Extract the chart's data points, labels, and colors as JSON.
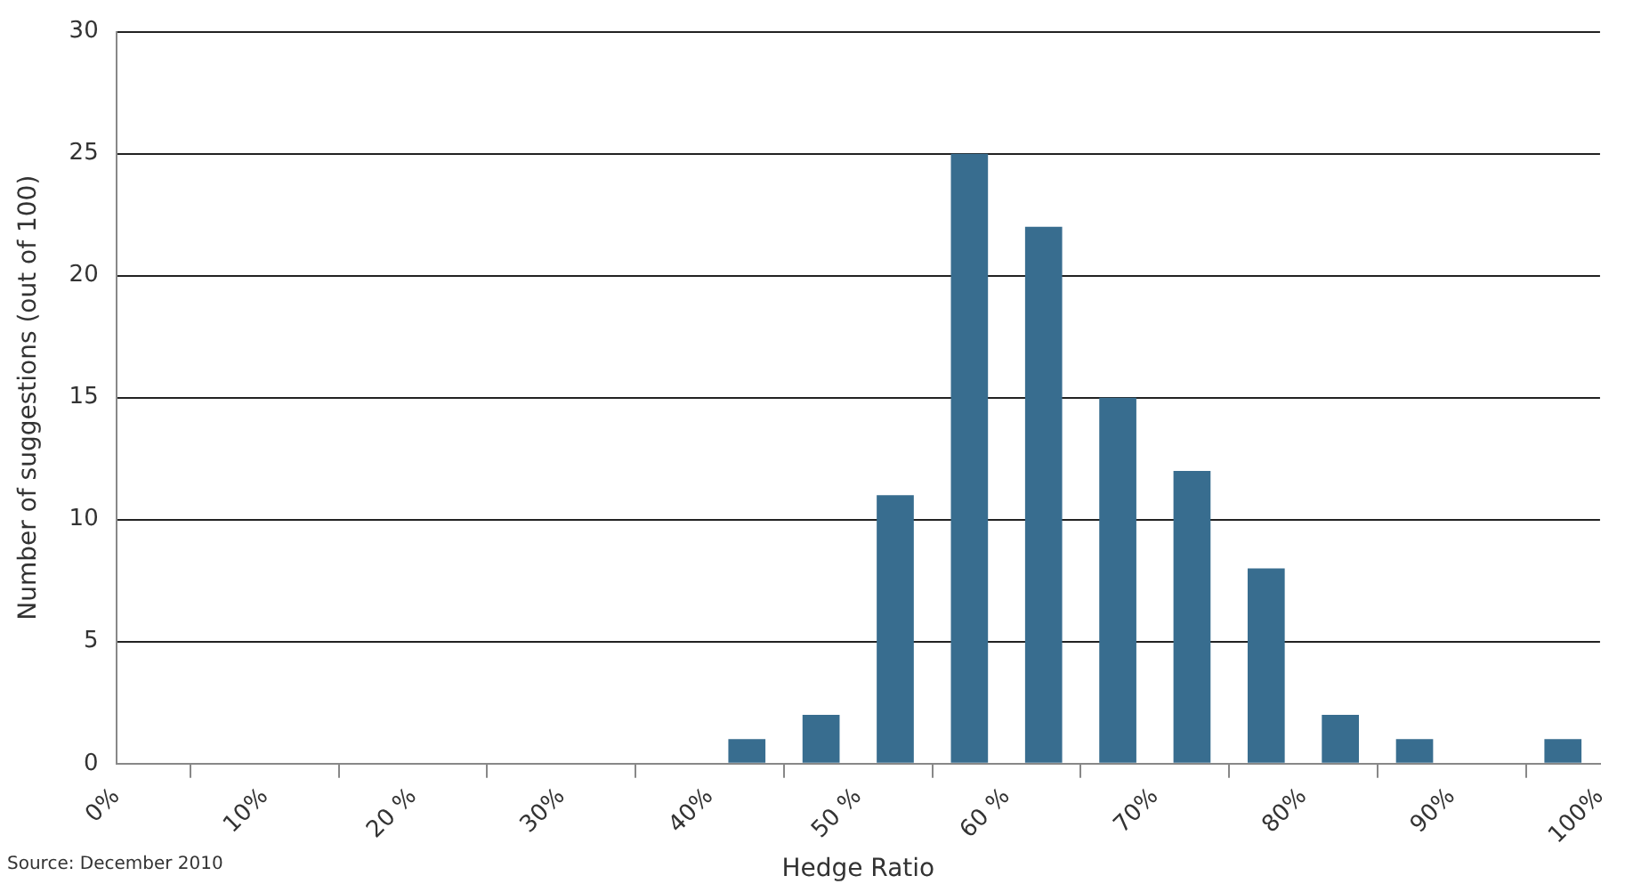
{
  "chart_data": {
    "type": "histogram",
    "xlabel": "Hedge Ratio",
    "ylabel": "Number of suggestions (out of 100)",
    "bins": [
      0,
      5,
      10,
      15,
      20,
      25,
      30,
      35,
      40,
      45,
      50,
      55,
      60,
      65,
      70,
      75,
      80,
      85,
      90,
      95,
      100
    ],
    "values": [
      0,
      0,
      0,
      0,
      0,
      0,
      0,
      0,
      1,
      2,
      11,
      25,
      22,
      15,
      12,
      8,
      2,
      1,
      0,
      1
    ],
    "color": "#386d8f",
    "xlim": [
      0,
      100
    ],
    "xticks": [
      {
        "value": 0,
        "label": "0%"
      },
      {
        "value": 10,
        "label": "10%"
      },
      {
        "value": 20,
        "label": "20 %"
      },
      {
        "value": 30,
        "label": "30%"
      },
      {
        "value": 40,
        "label": "40%"
      },
      {
        "value": 50,
        "label": "50 %"
      },
      {
        "value": 60,
        "label": "60 %"
      },
      {
        "value": 70,
        "label": "70%"
      },
      {
        "value": 80,
        "label": "80%"
      },
      {
        "value": 90,
        "label": "90%"
      },
      {
        "value": 100,
        "label": "100%"
      }
    ],
    "ylim": [
      0,
      30
    ],
    "yticks": [
      0,
      5,
      10,
      15,
      20,
      25,
      30
    ],
    "grid": "y",
    "legend": false,
    "annotations": [
      "Source: December 2010"
    ]
  }
}
